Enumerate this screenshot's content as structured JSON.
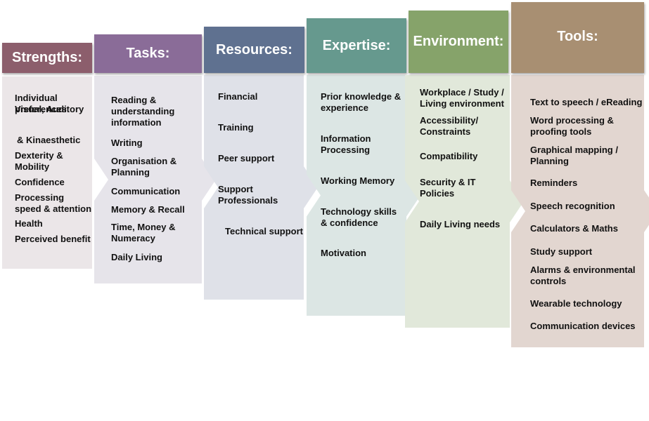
{
  "columns": [
    {
      "header": "Strengths:",
      "header_color": "#8c5e6c",
      "body_color": "#ebe6e8",
      "items": [
        "Individual preferences",
        "Visual, Auditory",
        "& Kinaesthetic",
        "Dexterity & Mobility",
        "Confidence",
        "Processing speed & attention",
        "Health",
        "Perceived benefit"
      ]
    },
    {
      "header": "Tasks:",
      "header_color": "#8a6c98",
      "body_color": "#e6e4ea",
      "items": [
        "Reading & understanding information",
        "Writing",
        "Organisation & Planning",
        "Communication",
        "Memory & Recall",
        "Time, Money & Numeracy",
        "Daily Living"
      ]
    },
    {
      "header": "Resources:",
      "header_color": "#5f7190",
      "body_color": "#dfe1e8",
      "items": [
        "Financial",
        "Training",
        "Peer support",
        "Support Professionals",
        "Technical support"
      ]
    },
    {
      "header": "Expertise:",
      "header_color": "#66998e",
      "body_color": "#dce6e4",
      "items": [
        "Prior knowledge & experience",
        "Information Processing",
        "Working Memory",
        "Technology skills & confidence",
        "Motivation"
      ]
    },
    {
      "header": "Environment:",
      "header_color": "#86a36a",
      "body_color": "#e1e8da",
      "items": [
        "Workplace / Study / Living  environment",
        "Accessibility/ Constraints",
        "Compatibility",
        "Security & IT Policies",
        "Daily Living needs"
      ]
    },
    {
      "header": "Tools:",
      "header_color": "#a88f72",
      "body_color": "#e2d6d0",
      "items": [
        "Text to speech / eReading",
        "Word processing  & proofing tools",
        "Graphical mapping / Planning",
        "Reminders",
        "Speech recognition",
        "Calculators & Maths",
        "Study support",
        "Alarms & environmental controls",
        "Wearable technology",
        "Communication devices"
      ]
    }
  ]
}
